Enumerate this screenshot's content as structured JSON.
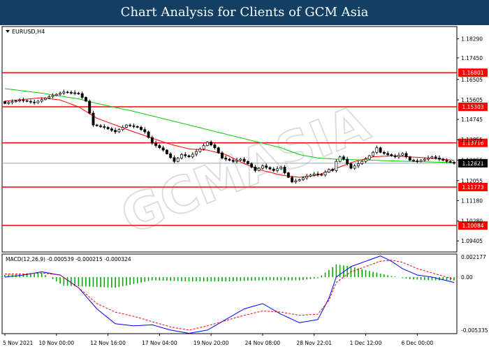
{
  "header": {
    "title": "Chart Analysis for Clients of GCM Asia"
  },
  "watermark": {
    "text": "GCMASIA",
    "subtext": "GCM ASIA FINANCIAL MARKETS"
  },
  "chart_data": [
    {
      "type": "candlestick",
      "symbol_label": "EURUSD,H4",
      "ylim": [
        1.0892,
        1.1883
      ],
      "y_ticks": [
        "1.18290",
        "1.17450",
        "1.16505",
        "1.15605",
        "1.14745",
        "1.13855",
        "1.12955",
        "1.12055",
        "1.11180",
        "1.10280",
        "1.09405"
      ],
      "current_price": "1.12821",
      "horizontal_levels": [
        "1.16801",
        "1.15303",
        "1.13716",
        "1.11773",
        "1.10084"
      ],
      "colors": {
        "levels": "#ff0000",
        "candles": "#000000",
        "fast_ma": "#ff0000",
        "slow_ma": "#00cc00",
        "current_price": "#9aa7b0"
      },
      "close_path": [
        [
          0,
          1.1545
        ],
        [
          4,
          1.156
        ],
        [
          8,
          1.1548
        ],
        [
          12,
          1.1575
        ],
        [
          16,
          1.1595
        ],
        [
          20,
          1.1588
        ],
        [
          22,
          1.1555
        ],
        [
          24,
          1.145
        ],
        [
          27,
          1.144
        ],
        [
          30,
          1.142
        ],
        [
          33,
          1.145
        ],
        [
          36,
          1.144
        ],
        [
          38,
          1.142
        ],
        [
          40,
          1.137
        ],
        [
          43,
          1.134
        ],
        [
          46,
          1.129
        ],
        [
          48,
          1.132
        ],
        [
          50,
          1.131
        ],
        [
          53,
          1.1345
        ],
        [
          55,
          1.1375
        ],
        [
          57,
          1.135
        ],
        [
          59,
          1.1305
        ],
        [
          62,
          1.129
        ],
        [
          64,
          1.13
        ],
        [
          66,
          1.128
        ],
        [
          68,
          1.125
        ],
        [
          70,
          1.127
        ],
        [
          73,
          1.125
        ],
        [
          75,
          1.1265
        ],
        [
          76,
          1.124
        ],
        [
          78,
          1.12
        ],
        [
          80,
          1.121
        ],
        [
          82,
          1.1225
        ],
        [
          84,
          1.1235
        ],
        [
          86,
          1.123
        ],
        [
          88,
          1.1255
        ],
        [
          89,
          1.125
        ],
        [
          90,
          1.129
        ],
        [
          91,
          1.131
        ],
        [
          92,
          1.13
        ],
        [
          94,
          1.126
        ],
        [
          96,
          1.128
        ],
        [
          98,
          1.13
        ],
        [
          100,
          1.133
        ],
        [
          101,
          1.135
        ],
        [
          102,
          1.133
        ],
        [
          104,
          1.132
        ],
        [
          106,
          1.131
        ],
        [
          108,
          1.1325
        ],
        [
          110,
          1.1295
        ],
        [
          112,
          1.129
        ],
        [
          114,
          1.13
        ],
        [
          116,
          1.131
        ],
        [
          118,
          1.13
        ],
        [
          120,
          1.129
        ],
        [
          122,
          1.1282
        ]
      ],
      "slow_ma_path": [
        [
          0,
          1.161
        ],
        [
          10,
          1.159
        ],
        [
          20,
          1.1565
        ],
        [
          25,
          1.1545
        ],
        [
          35,
          1.151
        ],
        [
          45,
          1.147
        ],
        [
          55,
          1.143
        ],
        [
          65,
          1.139
        ],
        [
          75,
          1.135
        ],
        [
          80,
          1.132
        ],
        [
          85,
          1.1305
        ],
        [
          90,
          1.13
        ],
        [
          100,
          1.1295
        ],
        [
          110,
          1.129
        ],
        [
          122,
          1.1285
        ]
      ],
      "fast_ma_path": [
        [
          0,
          1.1555
        ],
        [
          10,
          1.157
        ],
        [
          15,
          1.156
        ],
        [
          20,
          1.153
        ],
        [
          25,
          1.148
        ],
        [
          35,
          1.142
        ],
        [
          45,
          1.1365
        ],
        [
          50,
          1.1345
        ],
        [
          55,
          1.134
        ],
        [
          60,
          1.132
        ],
        [
          65,
          1.128
        ],
        [
          70,
          1.125
        ],
        [
          75,
          1.123
        ],
        [
          80,
          1.122
        ],
        [
          85,
          1.123
        ],
        [
          90,
          1.126
        ],
        [
          95,
          1.129
        ],
        [
          100,
          1.131
        ],
        [
          105,
          1.1315
        ],
        [
          110,
          1.131
        ],
        [
          115,
          1.1305
        ],
        [
          122,
          1.1295
        ]
      ]
    },
    {
      "type": "macd",
      "label": "MACD(12,26,9) -0.000539 -0.000215 -0.000324",
      "ylim": [
        -0.005335,
        0.002177
      ],
      "y_ticks": [
        "0.002177",
        "0.00",
        "-0.005335"
      ],
      "colors": {
        "histogram": "#00aa00",
        "macd_line": "#0000ff",
        "signal_line": "#ff0000"
      },
      "macd_path": [
        [
          0,
          0.0
        ],
        [
          5,
          0.0002
        ],
        [
          10,
          0.0005
        ],
        [
          15,
          0.0002
        ],
        [
          20,
          -0.001
        ],
        [
          25,
          -0.003
        ],
        [
          30,
          -0.0044
        ],
        [
          35,
          -0.0046
        ],
        [
          40,
          -0.0045
        ],
        [
          45,
          -0.005
        ],
        [
          50,
          -0.0053
        ],
        [
          55,
          -0.005
        ],
        [
          60,
          -0.004
        ],
        [
          65,
          -0.003
        ],
        [
          70,
          -0.0025
        ],
        [
          75,
          -0.0035
        ],
        [
          80,
          -0.0043
        ],
        [
          85,
          -0.004
        ],
        [
          88,
          -0.002
        ],
        [
          90,
          0.0
        ],
        [
          94,
          0.001
        ],
        [
          98,
          0.0015
        ],
        [
          102,
          0.002
        ],
        [
          105,
          0.0015
        ],
        [
          108,
          0.0008
        ],
        [
          112,
          0.0002
        ],
        [
          116,
          0.0
        ],
        [
          122,
          -0.0005
        ]
      ],
      "signal_path": [
        [
          0,
          0.0003
        ],
        [
          5,
          0.0003
        ],
        [
          10,
          0.0004
        ],
        [
          15,
          0.0002
        ],
        [
          20,
          -0.001
        ],
        [
          25,
          -0.0025
        ],
        [
          30,
          -0.0033
        ],
        [
          35,
          -0.0037
        ],
        [
          40,
          -0.0042
        ],
        [
          45,
          -0.0047
        ],
        [
          50,
          -0.005
        ],
        [
          55,
          -0.0046
        ],
        [
          60,
          -0.0041
        ],
        [
          65,
          -0.0036
        ],
        [
          70,
          -0.0032
        ],
        [
          75,
          -0.0033
        ],
        [
          80,
          -0.0036
        ],
        [
          85,
          -0.0035
        ],
        [
          88,
          -0.0022
        ],
        [
          90,
          -0.0005
        ],
        [
          94,
          0.0005
        ],
        [
          98,
          0.001
        ],
        [
          102,
          0.0015
        ],
        [
          105,
          0.0016
        ],
        [
          108,
          0.0014
        ],
        [
          112,
          0.0008
        ],
        [
          116,
          0.0004
        ],
        [
          122,
          -0.0002
        ]
      ],
      "histogram_path": [
        [
          0,
          0.0002
        ],
        [
          10,
          0.0004
        ],
        [
          16,
          -0.0008
        ],
        [
          30,
          -0.001
        ],
        [
          40,
          -0.0003
        ],
        [
          50,
          -0.0004
        ],
        [
          60,
          -0.0004
        ],
        [
          70,
          -0.0003
        ],
        [
          80,
          -0.0003
        ],
        [
          85,
          -0.0001
        ],
        [
          90,
          0.0012
        ],
        [
          94,
          0.001
        ],
        [
          100,
          0.0005
        ],
        [
          105,
          0.0001
        ],
        [
          110,
          -0.0002
        ],
        [
          116,
          -0.0003
        ],
        [
          122,
          -0.0003
        ]
      ]
    }
  ],
  "x_axis": {
    "labels": [
      "5 Nov 2021",
      "10 Nov 00:00",
      "12 Nov 16:00",
      "17 Nov 04:00",
      "19 Nov 20:00",
      "24 Nov 08:00",
      "28 Nov 22:01",
      "1 Dec 12:00",
      "6 Dec 00:00"
    ],
    "label_bars": [
      0,
      14,
      28,
      42,
      56,
      70,
      84,
      98,
      112
    ]
  }
}
